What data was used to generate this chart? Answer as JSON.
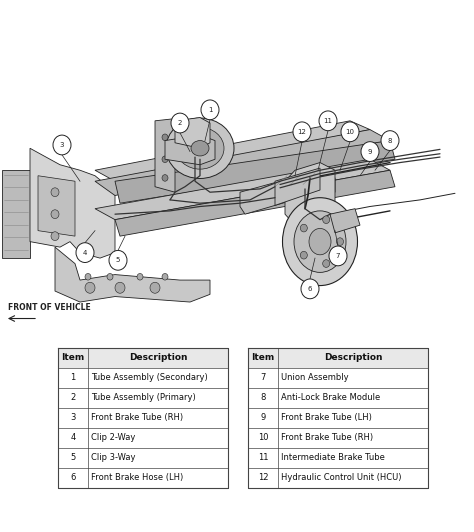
{
  "bg_color": "#ffffff",
  "table_left": {
    "headers": [
      "Item",
      "Description"
    ],
    "rows": [
      [
        "1",
        "Tube Assembly (Secondary)"
      ],
      [
        "2",
        "Tube Assembly (Primary)"
      ],
      [
        "3",
        "Front Brake Tube (RH)"
      ],
      [
        "4",
        "Clip 2-Way"
      ],
      [
        "5",
        "Clip 3-Way"
      ],
      [
        "6",
        "Front Brake Hose (LH)"
      ]
    ]
  },
  "table_right": {
    "headers": [
      "Item",
      "Description"
    ],
    "rows": [
      [
        "7",
        "Union Assembly"
      ],
      [
        "8",
        "Anti-Lock Brake Module"
      ],
      [
        "9",
        "Front Brake Tube (LH)"
      ],
      [
        "10",
        "Front Brake Tube (RH)"
      ],
      [
        "11",
        "Intermediate Brake Tube"
      ],
      [
        "12",
        "Hydraulic Control Unit (HCU)"
      ]
    ]
  },
  "border_color": "#444444",
  "text_color": "#111111",
  "font_size_header": 6.5,
  "font_size_row": 6.0,
  "dark": "#222222",
  "gray1": "#cccccc",
  "gray2": "#aaaaaa",
  "gray3": "#888888",
  "white": "#ffffff"
}
